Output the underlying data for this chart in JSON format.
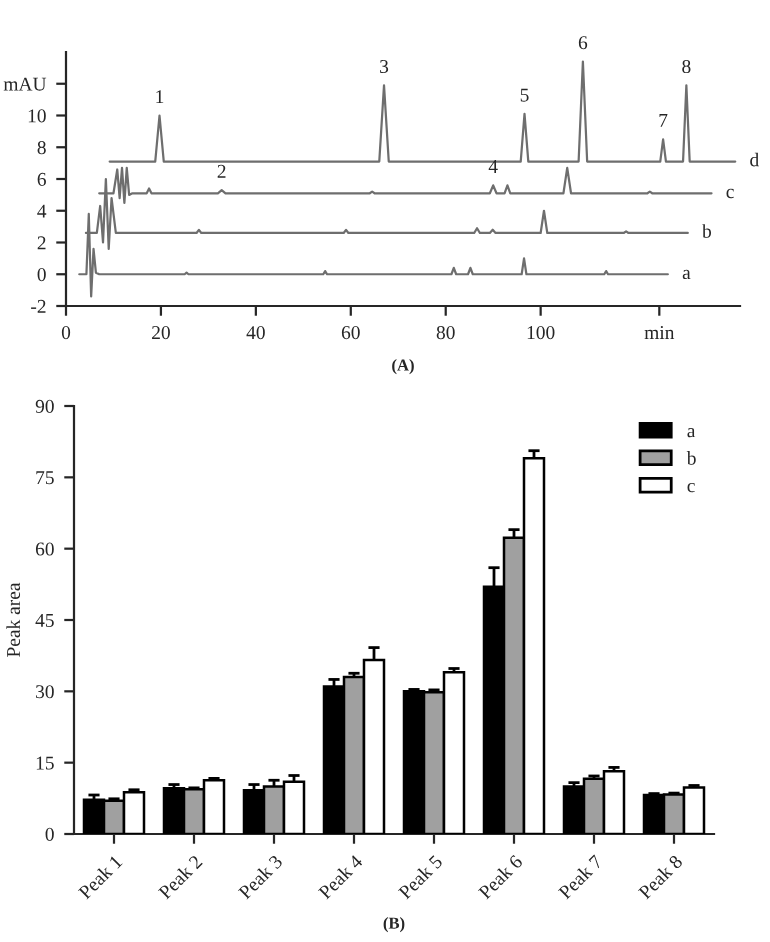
{
  "chart_data": [
    {
      "type": "line",
      "title": "(A)",
      "xlim": [
        0,
        142
      ],
      "xticks": [
        0,
        20,
        40,
        60,
        80,
        100,
        {
          "value": 125,
          "label": "min"
        }
      ],
      "ylim": [
        -2,
        14
      ],
      "yticks": [
        -2,
        0,
        2,
        4,
        6,
        8,
        10,
        {
          "value": 12,
          "label": "mAU"
        }
      ],
      "grid": false,
      "marker": "none",
      "line_style": "solid",
      "series": [
        {
          "name": "d",
          "color": "#6e6e6e",
          "x": [
            9.2,
            18.8,
            19.7,
            20.6,
            66,
            67,
            68,
            95.8,
            96.6,
            97.4,
            108,
            108.9,
            109.8,
            125.2,
            125.8,
            126.4,
            130,
            130.7,
            131.4,
            141
          ],
          "values": [
            7.1,
            7.1,
            10.0,
            7.1,
            7.1,
            11.9,
            7.1,
            7.1,
            10.1,
            7.1,
            7.1,
            13.4,
            7.1,
            7.1,
            8.5,
            7.1,
            7.1,
            11.9,
            7.1,
            7.1
          ]
        },
        {
          "name": "c",
          "color": "#6e6e6e",
          "x": [
            7,
            10,
            10.8,
            11.3,
            11.8,
            12.3,
            12.8,
            13.3,
            14,
            17,
            17.5,
            18,
            32,
            32.8,
            33.6,
            64,
            64.5,
            65,
            89.3,
            90,
            90.7,
            92.4,
            93,
            93.6,
            104.8,
            105.6,
            106.4,
            122.5,
            123,
            123.5,
            136
          ],
          "values": [
            5.1,
            5.1,
            6.6,
            4.8,
            6.7,
            4.5,
            6.7,
            5.0,
            5.1,
            5.1,
            5.4,
            5.1,
            5.1,
            5.3,
            5.1,
            5.1,
            5.2,
            5.1,
            5.1,
            5.6,
            5.1,
            5.1,
            5.6,
            5.1,
            5.1,
            6.7,
            5.1,
            5.1,
            5.2,
            5.1,
            5.1
          ]
        },
        {
          "name": "b",
          "color": "#6e6e6e",
          "x": [
            4.2,
            6.5,
            7.2,
            7.8,
            8.4,
            9,
            9.6,
            10.5,
            27.5,
            28,
            28.5,
            58.5,
            59,
            59.5,
            86,
            86.6,
            87.2,
            89.3,
            89.9,
            90.5,
            100,
            100.7,
            101.4,
            117.5,
            118,
            118.5,
            131
          ],
          "values": [
            2.6,
            2.6,
            4.3,
            2.0,
            6.0,
            1.6,
            4.8,
            2.6,
            2.6,
            2.8,
            2.6,
            2.6,
            2.8,
            2.6,
            2.6,
            2.9,
            2.6,
            2.6,
            2.8,
            2.6,
            2.6,
            4.0,
            2.6,
            2.6,
            2.7,
            2.6,
            2.6
          ]
        },
        {
          "name": "a",
          "color": "#6e6e6e",
          "x": [
            2.8,
            4.3,
            4.8,
            5.3,
            5.8,
            6.3,
            7,
            25,
            25.4,
            25.8,
            54.2,
            54.6,
            55,
            81.2,
            81.7,
            82.2,
            84.7,
            85.2,
            85.7,
            96,
            96.5,
            97,
            113.4,
            113.8,
            114.2,
            126.8
          ],
          "values": [
            0,
            0,
            3.8,
            -1.4,
            1.6,
            0.1,
            0,
            0,
            0.1,
            0,
            0,
            0.2,
            0,
            0,
            0.4,
            0,
            0,
            0.4,
            0,
            0,
            1.0,
            0,
            0,
            0.2,
            0,
            0
          ]
        }
      ],
      "annotations": [
        {
          "text": "1",
          "x": 19.7,
          "y": 10.0
        },
        {
          "text": "2",
          "x": 32.8,
          "y": 5.3
        },
        {
          "text": "3",
          "x": 67,
          "y": 11.9
        },
        {
          "text": "4",
          "x": 90,
          "y": 5.6
        },
        {
          "text": "5",
          "x": 96.6,
          "y": 10.1
        },
        {
          "text": "6",
          "x": 108.9,
          "y": 13.4
        },
        {
          "text": "7",
          "x": 125.8,
          "y": 8.5
        },
        {
          "text": "8",
          "x": 130.7,
          "y": 11.9
        }
      ]
    },
    {
      "type": "bar",
      "title": "(B)",
      "ylabel": "Peak area",
      "categories": [
        "Peak 1",
        "Peak 2",
        "Peak 3",
        "Peak 4",
        "Peak 5",
        "Peak 6",
        "Peak 7",
        "Peak 8"
      ],
      "ylim": [
        0,
        90
      ],
      "yticks": [
        0,
        15,
        30,
        45,
        60,
        75,
        90
      ],
      "grid": false,
      "legend": "top right",
      "series": [
        {
          "name": "a",
          "color": "#000000",
          "values": [
            7.2,
            9.6,
            9.2,
            31,
            30,
            52,
            10,
            8.2
          ],
          "errors": [
            1,
            0.8,
            1.2,
            1.5,
            0.4,
            4,
            0.8,
            0.3
          ]
        },
        {
          "name": "b",
          "color": "#a0a0a0",
          "values": [
            7,
            9.4,
            10,
            33,
            29.8,
            62.3,
            11.6,
            8.3
          ],
          "errors": [
            0.4,
            0.3,
            1.3,
            0.8,
            0.5,
            1.7,
            0.6,
            0.3
          ]
        },
        {
          "name": "c",
          "color": "#ffffff",
          "values": [
            8.8,
            11.3,
            11,
            36.6,
            34,
            79,
            13.2,
            9.8
          ],
          "errors": [
            0.5,
            0.4,
            1.3,
            2.6,
            0.8,
            1.6,
            0.8,
            0.4
          ]
        }
      ]
    }
  ]
}
